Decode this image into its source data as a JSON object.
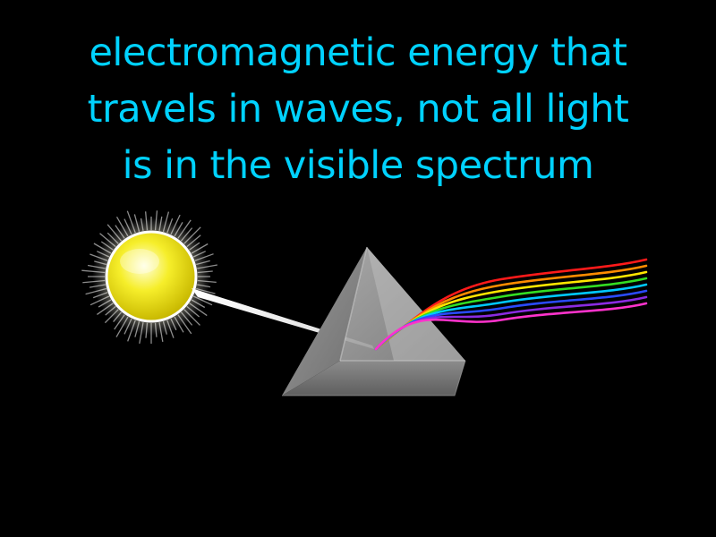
{
  "definition": {
    "lines": [
      "electromagnetic energy that",
      "travels in waves, not all light",
      "is in the visible spectrum"
    ]
  },
  "colors": {
    "background": "#000000",
    "text": "#00d2ff",
    "sun": "#f4ea1a",
    "beam": "#ffffff",
    "prism": "#8a8a8a"
  },
  "spectrum_colors": [
    "#ff1a1a",
    "#ff8c00",
    "#ffe600",
    "#33dd22",
    "#00c8ff",
    "#2a4bff",
    "#8a2be2",
    "#ff33cc"
  ],
  "icons": {
    "sun": "sun-icon",
    "prism": "prism-icon"
  }
}
